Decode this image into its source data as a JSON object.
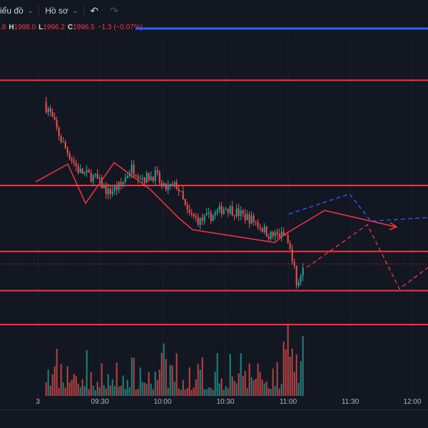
{
  "toolbar": {
    "chart_menu_label": "iểu đồ",
    "profile_menu_label": "Hồ sơ",
    "undo_icon": "undo-icon",
    "redo_icon": "redo-icon"
  },
  "legend": {
    "open_partial": ".8",
    "high_key": "H",
    "high": "1998.0",
    "low_key": "L",
    "low": "1996.2",
    "close_key": "C",
    "close": "1996.5",
    "change": "−1.3 (−0.07%)"
  },
  "colors": {
    "up": "#26a69a",
    "down": "#ef5350",
    "level": "#f23645",
    "projection_blue": "#2962ff",
    "background": "#131722"
  },
  "chart_data": {
    "type": "candlestick",
    "x_tick_labels": [
      "3",
      "09:30",
      "10:00",
      "10:30",
      "11:00",
      "11:30",
      "12:00"
    ],
    "last_price": 1996.5,
    "horizontal_levels": [
      2006.8,
      2000.9,
      1997.2,
      1995.0,
      1993.1
    ],
    "price_path_keypoints": [
      {
        "t": "09:05",
        "price": 2005.3
      },
      {
        "t": "09:12",
        "price": 2003.3
      },
      {
        "t": "09:20",
        "price": 2001.7
      },
      {
        "t": "09:28",
        "price": 2001.3
      },
      {
        "t": "09:34",
        "price": 2000.5
      },
      {
        "t": "09:40",
        "price": 2000.9
      },
      {
        "t": "09:45",
        "price": 2001.9
      },
      {
        "t": "09:51",
        "price": 2001.3
      },
      {
        "t": "09:57",
        "price": 2001.5
      },
      {
        "t": "10:00",
        "price": 2000.7
      },
      {
        "t": "10:07",
        "price": 2000.9
      },
      {
        "t": "10:12",
        "price": 1999.3
      },
      {
        "t": "10:18",
        "price": 1998.9
      },
      {
        "t": "10:25",
        "price": 1999.3
      },
      {
        "t": "10:30",
        "price": 1999.7
      },
      {
        "t": "10:37",
        "price": 1999.3
      },
      {
        "t": "10:44",
        "price": 1998.9
      },
      {
        "t": "10:51",
        "price": 1998.1
      },
      {
        "t": "10:58",
        "price": 1998.1
      },
      {
        "t": "11:02",
        "price": 1996.9
      },
      {
        "t": "11:04",
        "price": 1995.3
      },
      {
        "t": "11:08",
        "price": 1996.5
      }
    ]
  }
}
